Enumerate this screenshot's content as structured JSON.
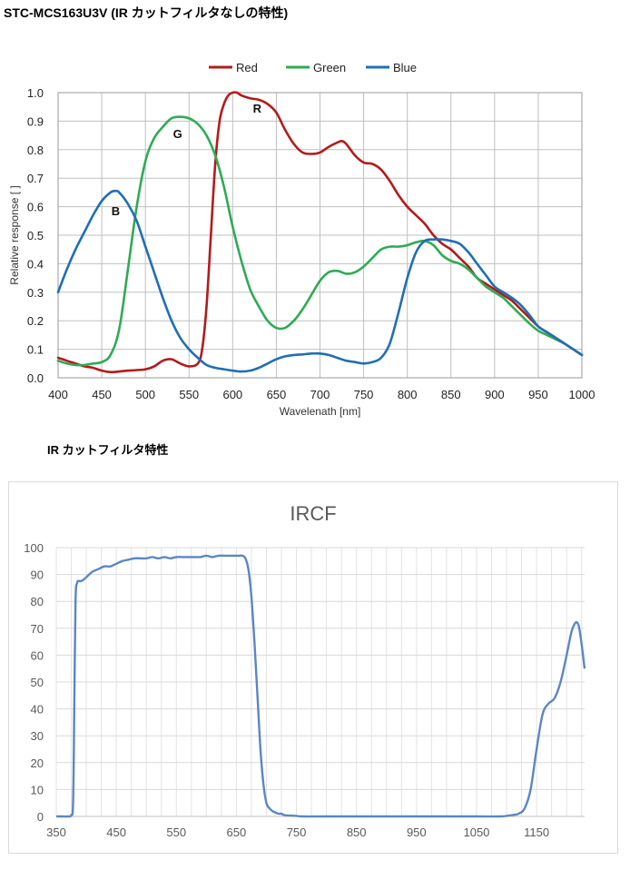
{
  "page": {
    "title": "STC-MCS163U3V (IR カットフィルタなしの特性)",
    "section2_title": "IR カットフィルタ特性"
  },
  "colors": {
    "red": "#b31b1b",
    "green": "#2eab55",
    "blue": "#1f6fb4",
    "ircf": "#5b86c5",
    "grid": "#c0c0c0",
    "grid2": "#e3e3e3"
  },
  "chart_data": [
    {
      "type": "line",
      "title": "",
      "xlabel": "Wavelenath [nm]",
      "ylabel": "Relative response [ ]",
      "xlim": [
        400,
        1000
      ],
      "ylim": [
        0,
        1.0
      ],
      "xticks": [
        400,
        450,
        500,
        550,
        600,
        650,
        700,
        750,
        800,
        850,
        900,
        950,
        1000
      ],
      "yticks": [
        0,
        0.1,
        0.2,
        0.3,
        0.4,
        0.5,
        0.6,
        0.7,
        0.8,
        0.9,
        1.0
      ],
      "ytick_labels": [
        "0.0",
        "0.1",
        "0.2",
        "0.3",
        "0.4",
        "0.5",
        "0.6",
        "0.7",
        "0.8",
        "0.9",
        "1.0"
      ],
      "grid": true,
      "legend_position": "top-center",
      "annotations": [
        {
          "text": "R",
          "x": 628,
          "y": 0.93
        },
        {
          "text": "G",
          "x": 537,
          "y": 0.84
        },
        {
          "text": "B",
          "x": 466,
          "y": 0.57
        }
      ],
      "series": [
        {
          "name": "Red",
          "color": "#b31b1b",
          "x": [
            400,
            410,
            420,
            430,
            440,
            450,
            460,
            470,
            480,
            490,
            500,
            510,
            520,
            530,
            540,
            550,
            560,
            565,
            570,
            575,
            580,
            585,
            590,
            595,
            600,
            605,
            610,
            620,
            630,
            640,
            650,
            660,
            670,
            680,
            690,
            700,
            710,
            720,
            725,
            730,
            740,
            750,
            760,
            770,
            780,
            790,
            800,
            810,
            820,
            830,
            840,
            850,
            860,
            870,
            880,
            890,
            900,
            910,
            920,
            930,
            940,
            950,
            960,
            970,
            980,
            990,
            1000
          ],
          "y": [
            0.07,
            0.06,
            0.05,
            0.04,
            0.035,
            0.025,
            0.02,
            0.022,
            0.025,
            0.027,
            0.03,
            0.04,
            0.06,
            0.065,
            0.05,
            0.04,
            0.05,
            0.1,
            0.25,
            0.5,
            0.75,
            0.9,
            0.96,
            0.99,
            1.0,
            1.0,
            0.99,
            0.98,
            0.975,
            0.96,
            0.93,
            0.87,
            0.82,
            0.79,
            0.785,
            0.79,
            0.81,
            0.825,
            0.83,
            0.82,
            0.78,
            0.755,
            0.75,
            0.73,
            0.69,
            0.64,
            0.6,
            0.57,
            0.54,
            0.5,
            0.47,
            0.45,
            0.42,
            0.39,
            0.35,
            0.33,
            0.31,
            0.29,
            0.27,
            0.24,
            0.21,
            0.18,
            0.16,
            0.14,
            0.12,
            0.1,
            0.08
          ]
        },
        {
          "name": "Green",
          "color": "#2eab55",
          "x": [
            400,
            410,
            420,
            430,
            440,
            450,
            460,
            470,
            480,
            490,
            500,
            510,
            520,
            530,
            540,
            550,
            560,
            570,
            580,
            590,
            600,
            610,
            620,
            630,
            640,
            650,
            660,
            670,
            680,
            690,
            700,
            710,
            720,
            730,
            740,
            750,
            760,
            770,
            780,
            790,
            800,
            810,
            820,
            830,
            840,
            850,
            860,
            870,
            880,
            890,
            900,
            910,
            920,
            930,
            940,
            950,
            960,
            970,
            980,
            990,
            1000
          ],
          "y": [
            0.06,
            0.05,
            0.045,
            0.045,
            0.05,
            0.055,
            0.08,
            0.17,
            0.38,
            0.6,
            0.76,
            0.84,
            0.88,
            0.91,
            0.915,
            0.91,
            0.89,
            0.85,
            0.78,
            0.67,
            0.53,
            0.41,
            0.31,
            0.25,
            0.2,
            0.175,
            0.175,
            0.2,
            0.24,
            0.29,
            0.34,
            0.37,
            0.375,
            0.365,
            0.37,
            0.39,
            0.42,
            0.45,
            0.46,
            0.46,
            0.465,
            0.475,
            0.48,
            0.465,
            0.43,
            0.41,
            0.4,
            0.38,
            0.35,
            0.32,
            0.3,
            0.28,
            0.25,
            0.22,
            0.19,
            0.165,
            0.15,
            0.135,
            0.12,
            0.1,
            0.08
          ]
        },
        {
          "name": "Blue",
          "color": "#1f6fb4",
          "x": [
            400,
            410,
            420,
            430,
            440,
            450,
            460,
            465,
            470,
            480,
            490,
            500,
            510,
            520,
            530,
            540,
            550,
            560,
            570,
            580,
            590,
            600,
            610,
            620,
            630,
            640,
            650,
            660,
            670,
            680,
            690,
            700,
            710,
            720,
            730,
            740,
            750,
            760,
            770,
            780,
            790,
            800,
            810,
            820,
            830,
            840,
            850,
            860,
            870,
            880,
            890,
            900,
            910,
            920,
            930,
            940,
            950,
            960,
            970,
            980,
            990,
            1000
          ],
          "y": [
            0.3,
            0.38,
            0.45,
            0.51,
            0.57,
            0.62,
            0.65,
            0.655,
            0.65,
            0.61,
            0.55,
            0.46,
            0.37,
            0.28,
            0.2,
            0.14,
            0.1,
            0.07,
            0.045,
            0.035,
            0.03,
            0.025,
            0.022,
            0.025,
            0.035,
            0.05,
            0.065,
            0.075,
            0.08,
            0.082,
            0.085,
            0.085,
            0.08,
            0.07,
            0.06,
            0.055,
            0.05,
            0.055,
            0.07,
            0.12,
            0.23,
            0.35,
            0.44,
            0.48,
            0.485,
            0.485,
            0.48,
            0.47,
            0.44,
            0.4,
            0.36,
            0.32,
            0.3,
            0.28,
            0.255,
            0.22,
            0.18,
            0.16,
            0.14,
            0.12,
            0.1,
            0.08
          ]
        }
      ]
    },
    {
      "type": "line",
      "title": "IRCF",
      "xlim": [
        350,
        1230
      ],
      "ylim": [
        0,
        100
      ],
      "xticks": [
        350,
        450,
        550,
        650,
        750,
        850,
        950,
        1050,
        1150
      ],
      "yticks": [
        0,
        10,
        20,
        30,
        40,
        50,
        60,
        70,
        80,
        90,
        100
      ],
      "grid": true,
      "series": [
        {
          "color": "#5b86c5",
          "x": [
            350,
            360,
            370,
            375,
            378,
            380,
            382,
            385,
            390,
            395,
            400,
            410,
            420,
            430,
            440,
            450,
            460,
            470,
            480,
            490,
            500,
            510,
            520,
            530,
            540,
            550,
            560,
            570,
            580,
            590,
            600,
            610,
            620,
            630,
            640,
            650,
            655,
            660,
            665,
            670,
            675,
            680,
            685,
            690,
            695,
            700,
            705,
            710,
            715,
            720,
            725,
            730,
            740,
            750,
            760,
            800,
            850,
            900,
            950,
            1000,
            1050,
            1090,
            1100,
            1110,
            1120,
            1130,
            1140,
            1150,
            1160,
            1170,
            1180,
            1190,
            1200,
            1210,
            1220,
            1230
          ],
          "y": [
            0,
            0,
            0,
            0.5,
            5,
            40,
            80,
            87,
            87.5,
            88,
            89,
            91,
            92,
            93,
            93,
            94,
            95,
            95.5,
            96,
            96,
            96,
            96.5,
            96,
            96.5,
            96,
            96.5,
            96.5,
            96.5,
            96.5,
            96.5,
            97,
            96.5,
            97,
            97,
            97,
            97,
            97,
            97,
            96,
            92,
            82,
            65,
            45,
            25,
            12,
            5,
            3,
            2,
            1.5,
            1,
            1,
            0.5,
            0.3,
            0.2,
            0,
            0,
            0,
            0,
            0,
            0,
            0,
            0,
            0.2,
            0.5,
            1,
            3,
            10,
            25,
            38,
            42,
            44,
            50,
            60,
            70,
            71,
            55
          ]
        }
      ]
    }
  ]
}
